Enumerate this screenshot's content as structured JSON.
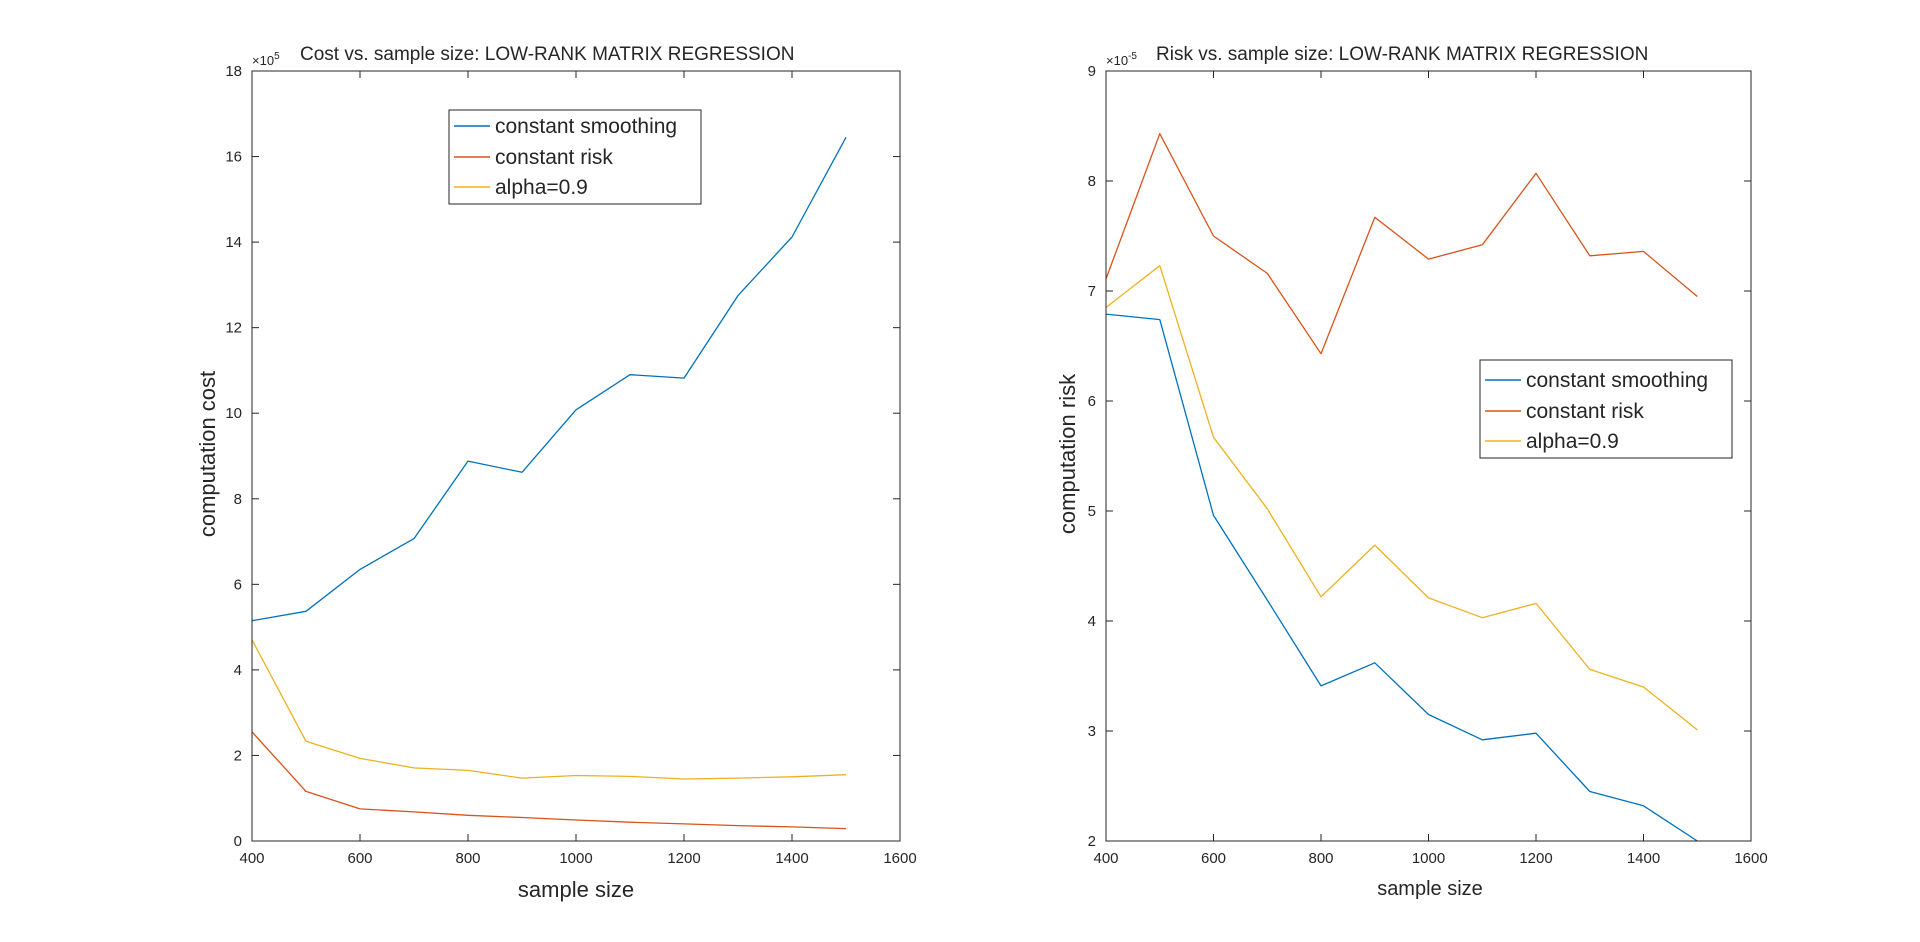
{
  "chart_data": [
    {
      "type": "line",
      "title": "Cost vs. sample size: LOW-RANK MATRIX REGRESSION",
      "xlabel": "sample size",
      "ylabel": "computation cost",
      "exponent_label": "×10^5",
      "exponent_base": "×10",
      "exponent_power": "5",
      "xlim": [
        400,
        1600
      ],
      "ylim": [
        0,
        18
      ],
      "xticks": [
        "400",
        "600",
        "800",
        "1000",
        "1200",
        "1400",
        "1600"
      ],
      "yticks": [
        "0",
        "2",
        "4",
        "6",
        "8",
        "10",
        "12",
        "14",
        "16",
        "18"
      ],
      "grid": false,
      "legend_position": "top-center",
      "x": [
        400,
        500,
        600,
        700,
        800,
        900,
        1000,
        1100,
        1200,
        1300,
        1400,
        1500
      ],
      "series": [
        {
          "name": "constant smoothing",
          "color": "#0072BD",
          "values": [
            5.15,
            5.37,
            6.35,
            7.07,
            8.88,
            8.62,
            10.08,
            10.9,
            10.82,
            12.75,
            14.12,
            16.45
          ]
        },
        {
          "name": "constant risk",
          "color": "#D95319",
          "values": [
            2.55,
            1.16,
            0.75,
            0.68,
            0.6,
            0.55,
            0.49,
            0.44,
            0.4,
            0.36,
            0.33,
            0.29
          ]
        },
        {
          "name": "alpha=0.9",
          "color": "#EDB120",
          "values": [
            4.7,
            2.33,
            1.93,
            1.71,
            1.65,
            1.47,
            1.53,
            1.51,
            1.45,
            1.47,
            1.5,
            1.55
          ]
        }
      ]
    },
    {
      "type": "line",
      "title": "Risk vs. sample size: LOW-RANK MATRIX REGRESSION",
      "xlabel": "sample size",
      "ylabel": "computation risk",
      "exponent_label": "×10^-5",
      "exponent_base": "×10",
      "exponent_power": "-5",
      "xlim": [
        400,
        1600
      ],
      "ylim": [
        2,
        9
      ],
      "xticks": [
        "400",
        "600",
        "800",
        "1000",
        "1200",
        "1400",
        "1600"
      ],
      "yticks": [
        "2",
        "3",
        "4",
        "5",
        "6",
        "7",
        "8",
        "9"
      ],
      "grid": false,
      "legend_position": "right-center",
      "x": [
        400,
        500,
        600,
        700,
        800,
        900,
        1000,
        1100,
        1200,
        1300,
        1400,
        1500
      ],
      "series": [
        {
          "name": "constant smoothing",
          "color": "#0072BD",
          "values": [
            6.79,
            6.74,
            4.96,
            4.19,
            3.41,
            3.62,
            3.15,
            2.92,
            2.98,
            2.45,
            2.32,
            2.0
          ]
        },
        {
          "name": "constant risk",
          "color": "#D95319",
          "values": [
            7.11,
            8.43,
            7.5,
            7.16,
            6.43,
            7.67,
            7.29,
            7.42,
            8.07,
            7.32,
            7.36,
            6.95
          ]
        },
        {
          "name": "alpha=0.9",
          "color": "#EDB120",
          "values": [
            6.85,
            7.23,
            5.67,
            5.02,
            4.22,
            4.69,
            4.21,
            4.03,
            4.16,
            3.56,
            3.4,
            3.01
          ]
        }
      ]
    }
  ]
}
